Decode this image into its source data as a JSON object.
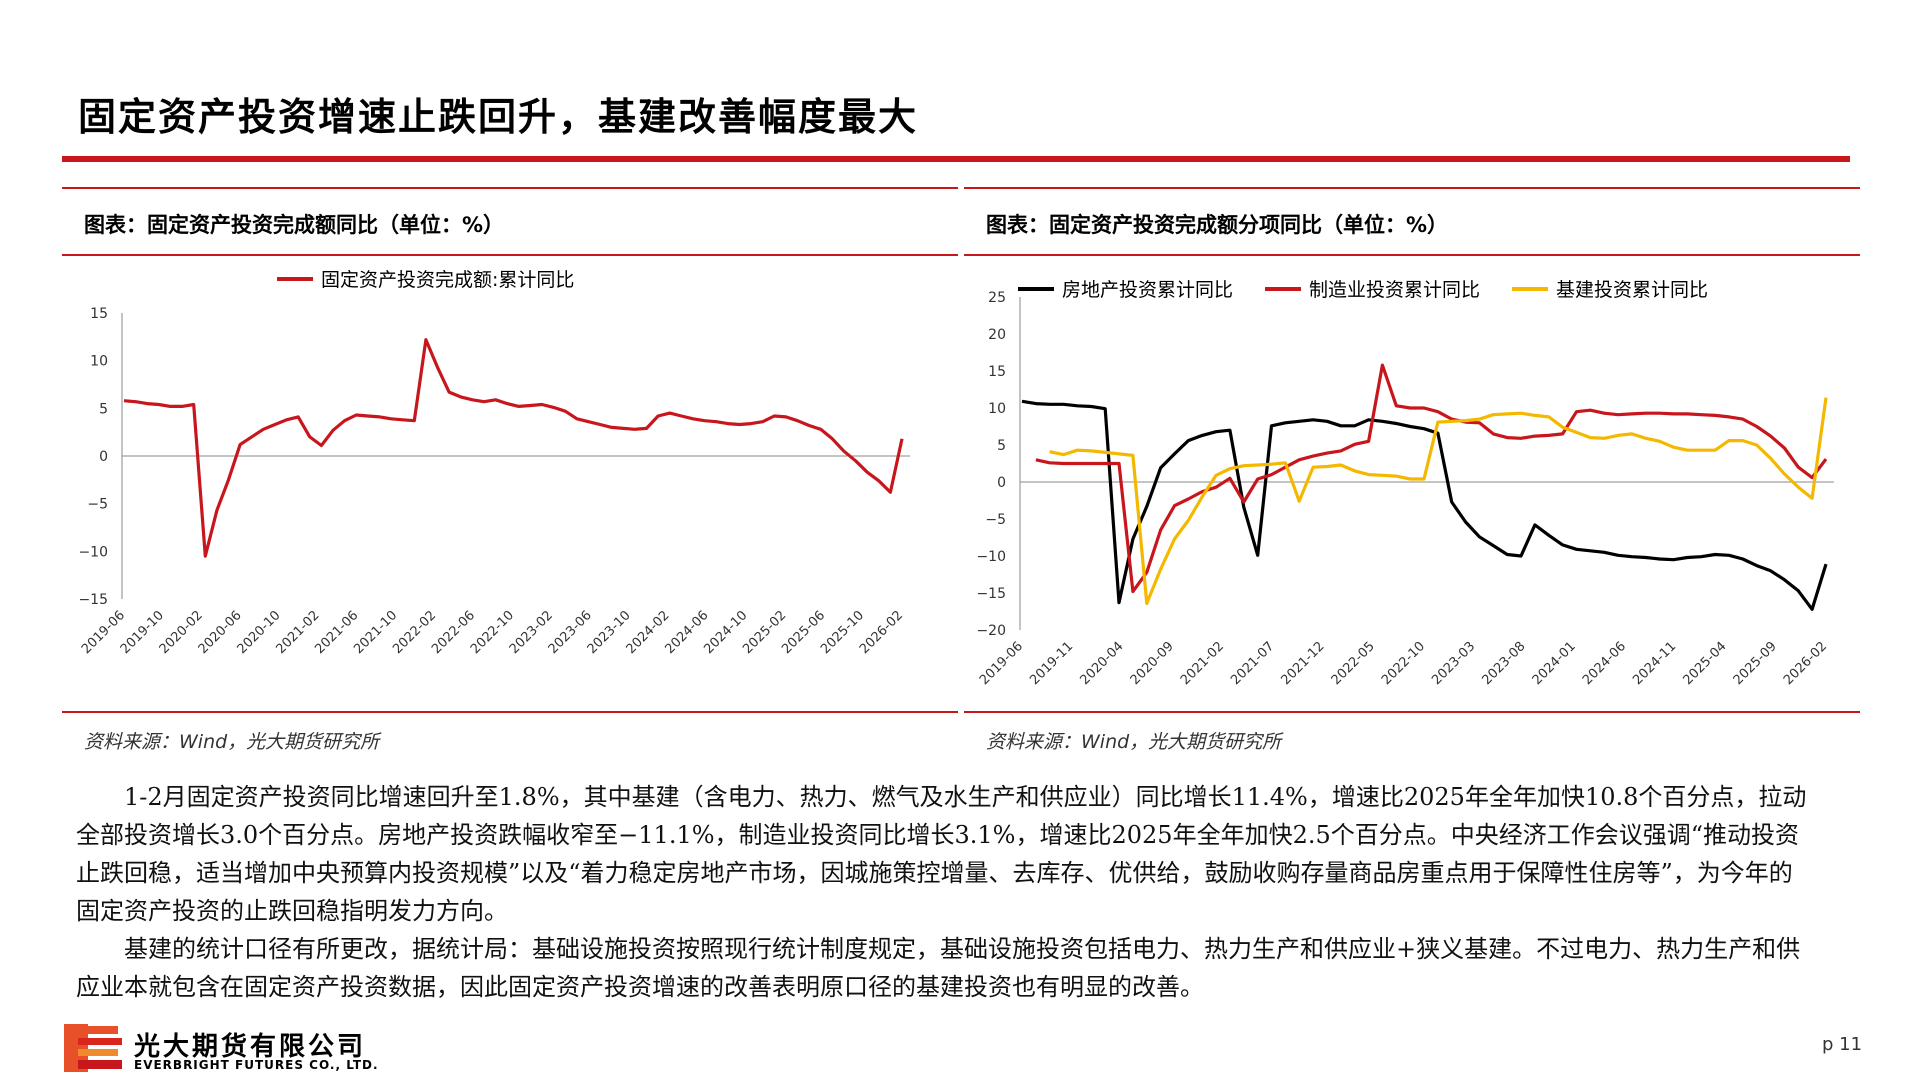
{
  "title": "固定资产投资增速止跌回升，基建改善幅度最大",
  "accent_color": "#c8161d",
  "left_panel": {
    "title": "图表：固定资产投资完成额同比（单位：%）",
    "source": "资料来源：Wind，光大期货研究所"
  },
  "right_panel": {
    "title": "图表：固定资产投资完成额分项同比（单位：%）",
    "source": "资料来源：Wind，光大期货研究所"
  },
  "chart_data": [
    {
      "type": "line",
      "legend_position": "top",
      "grid": false,
      "ylim": [
        -15,
        15
      ],
      "yticks": [
        "15",
        "10",
        "5",
        "0",
        "−5",
        "−10",
        "−15"
      ],
      "xtick_labels": [
        "2019-06",
        "2019-10",
        "2020-02",
        "2020-06",
        "2020-10",
        "2021-02",
        "2021-06",
        "2021-10",
        "2022-02",
        "2022-06",
        "2022-10",
        "2023-02",
        "2023-06",
        "2023-10",
        "2024-02",
        "2024-06",
        "2024-10",
        "2025-02",
        "2025-06",
        "2025-10",
        "2026-02"
      ],
      "series": [
        {
          "name": "固定资产投资完成额:累计同比",
          "color": "#c8161d",
          "values": [
            5.8,
            5.7,
            5.5,
            5.4,
            5.2,
            5.2,
            5.4,
            -10.5,
            -5.7,
            -2.5,
            1.2,
            2.0,
            2.8,
            3.3,
            3.8,
            4.1,
            2.0,
            1.1,
            2.7,
            3.7,
            4.3,
            4.2,
            4.1,
            3.9,
            3.8,
            3.7,
            12.2,
            9.3,
            6.7,
            6.2,
            5.9,
            5.7,
            5.9,
            5.5,
            5.2,
            5.3,
            5.4,
            5.1,
            4.7,
            3.9,
            3.6,
            3.3,
            3.0,
            2.9,
            2.8,
            2.9,
            4.2,
            4.5,
            4.2,
            3.9,
            3.7,
            3.6,
            3.4,
            3.3,
            3.4,
            3.6,
            4.2,
            4.1,
            3.7,
            3.2,
            2.8,
            1.8,
            0.5,
            -0.5,
            -1.7,
            -2.6,
            -3.8,
            1.8
          ]
        }
      ]
    },
    {
      "type": "line",
      "legend_position": "top",
      "grid": false,
      "ylim": [
        -20,
        25
      ],
      "yticks": [
        "25",
        "20",
        "15",
        "10",
        "5",
        "0",
        "−5",
        "−10",
        "−15",
        "−20"
      ],
      "xtick_labels": [
        "2019-06",
        "2019-11",
        "2020-04",
        "2020-09",
        "2021-02",
        "2021-07",
        "2021-12",
        "2022-05",
        "2022-10",
        "2023-03",
        "2023-08",
        "2024-01",
        "2024-06",
        "2024-11",
        "2025-04",
        "2025-09",
        "2026-02"
      ],
      "series": [
        {
          "name": "房地产投资累计同比",
          "color": "#000000",
          "values": [
            10.9,
            10.6,
            10.5,
            10.5,
            10.3,
            10.2,
            9.9,
            -16.3,
            -7.7,
            -3.3,
            1.9,
            3.8,
            5.6,
            6.3,
            6.8,
            7.0,
            -3.4,
            -9.9,
            7.6,
            8.0,
            8.2,
            8.4,
            8.2,
            7.6,
            7.6,
            8.4,
            8.2,
            7.9,
            7.5,
            7.2,
            6.6,
            -2.7,
            -5.4,
            -7.4,
            -8.6,
            -9.8,
            -10.0,
            -5.8,
            -7.2,
            -8.5,
            -9.1,
            -9.3,
            -9.5,
            -9.9,
            -10.1,
            -10.2,
            -10.4,
            -10.5,
            -10.2,
            -10.1,
            -9.8,
            -9.9,
            -10.4,
            -11.3,
            -12.0,
            -13.2,
            -14.7,
            -17.2,
            -11.1
          ]
        },
        {
          "name": "制造业投资累计同比",
          "color": "#c8161d",
          "values": [
            3.0,
            2.6,
            2.5,
            2.5,
            2.5,
            2.5,
            2.5,
            -14.8,
            -12.2,
            -6.5,
            -3.2,
            -2.3,
            -1.3,
            -0.7,
            0.5,
            -2.7,
            0.4,
            1.0,
            2.0,
            3.0,
            3.5,
            3.9,
            4.2,
            5.1,
            5.5,
            15.8,
            10.3,
            10.0,
            10.0,
            9.5,
            8.5,
            8.1,
            8.0,
            6.5,
            6.0,
            5.9,
            6.2,
            6.3,
            6.5,
            9.5,
            9.7,
            9.3,
            9.1,
            9.2,
            9.3,
            9.3,
            9.2,
            9.2,
            9.1,
            9.0,
            8.8,
            8.5,
            7.5,
            6.2,
            4.6,
            2.0,
            0.6,
            3.1
          ]
        },
        {
          "name": "基建投资累计同比",
          "color": "#f5b800",
          "values": [
            4.1,
            3.7,
            4.3,
            4.2,
            4.0,
            3.8,
            3.6,
            -16.4,
            -11.8,
            -7.7,
            -5.2,
            -2.0,
            0.9,
            1.8,
            2.2,
            2.3,
            2.4,
            2.6,
            -2.6,
            2.0,
            2.1,
            2.3,
            1.5,
            1.0,
            0.9,
            0.8,
            0.4,
            0.4,
            8.1,
            8.2,
            8.3,
            8.5,
            9.1,
            9.2,
            9.3,
            9.0,
            8.8,
            7.4,
            6.7,
            6.0,
            5.9,
            6.3,
            6.5,
            5.9,
            5.5,
            4.7,
            4.3,
            4.3,
            4.3,
            5.6,
            5.6,
            5.0,
            3.2,
            1.1,
            -0.7,
            -2.2,
            11.4
          ]
        }
      ]
    }
  ],
  "body": {
    "p1": "1-2月固定资产投资同比增速回升至1.8%，其中基建（含电力、热力、燃气及水生产和供应业）同比增长11.4%，增速比2025年全年加快10.8个百分点，拉动全部投资增长3.0个百分点。房地产投资跌幅收窄至−11.1%，制造业投资同比增长3.1%，增速比2025年全年加快2.5个百分点。中央经济工作会议强调“推动投资止跌回稳，适当增加中央预算内投资规模”以及“着力稳定房地产市场，因城施策控增量、去库存、优供给，鼓励收购存量商品房重点用于保障性住房等”，为今年的固定资产投资的止跌回稳指明发力方向。",
    "p2": "基建的统计口径有所更改，据统计局：基础设施投资按照现行统计制度规定，基础设施投资包括电力、热力生产和供应业+狭义基建。不过电力、热力生产和供应业本就包含在固定资产投资数据，因此固定资产投资增速的改善表明原口径的基建投资也有明显的改善。"
  },
  "footer": {
    "company_cn": "光大期货有限公司",
    "company_en": "EVERBRIGHT FUTURES CO., LTD.",
    "page": "p 11"
  }
}
